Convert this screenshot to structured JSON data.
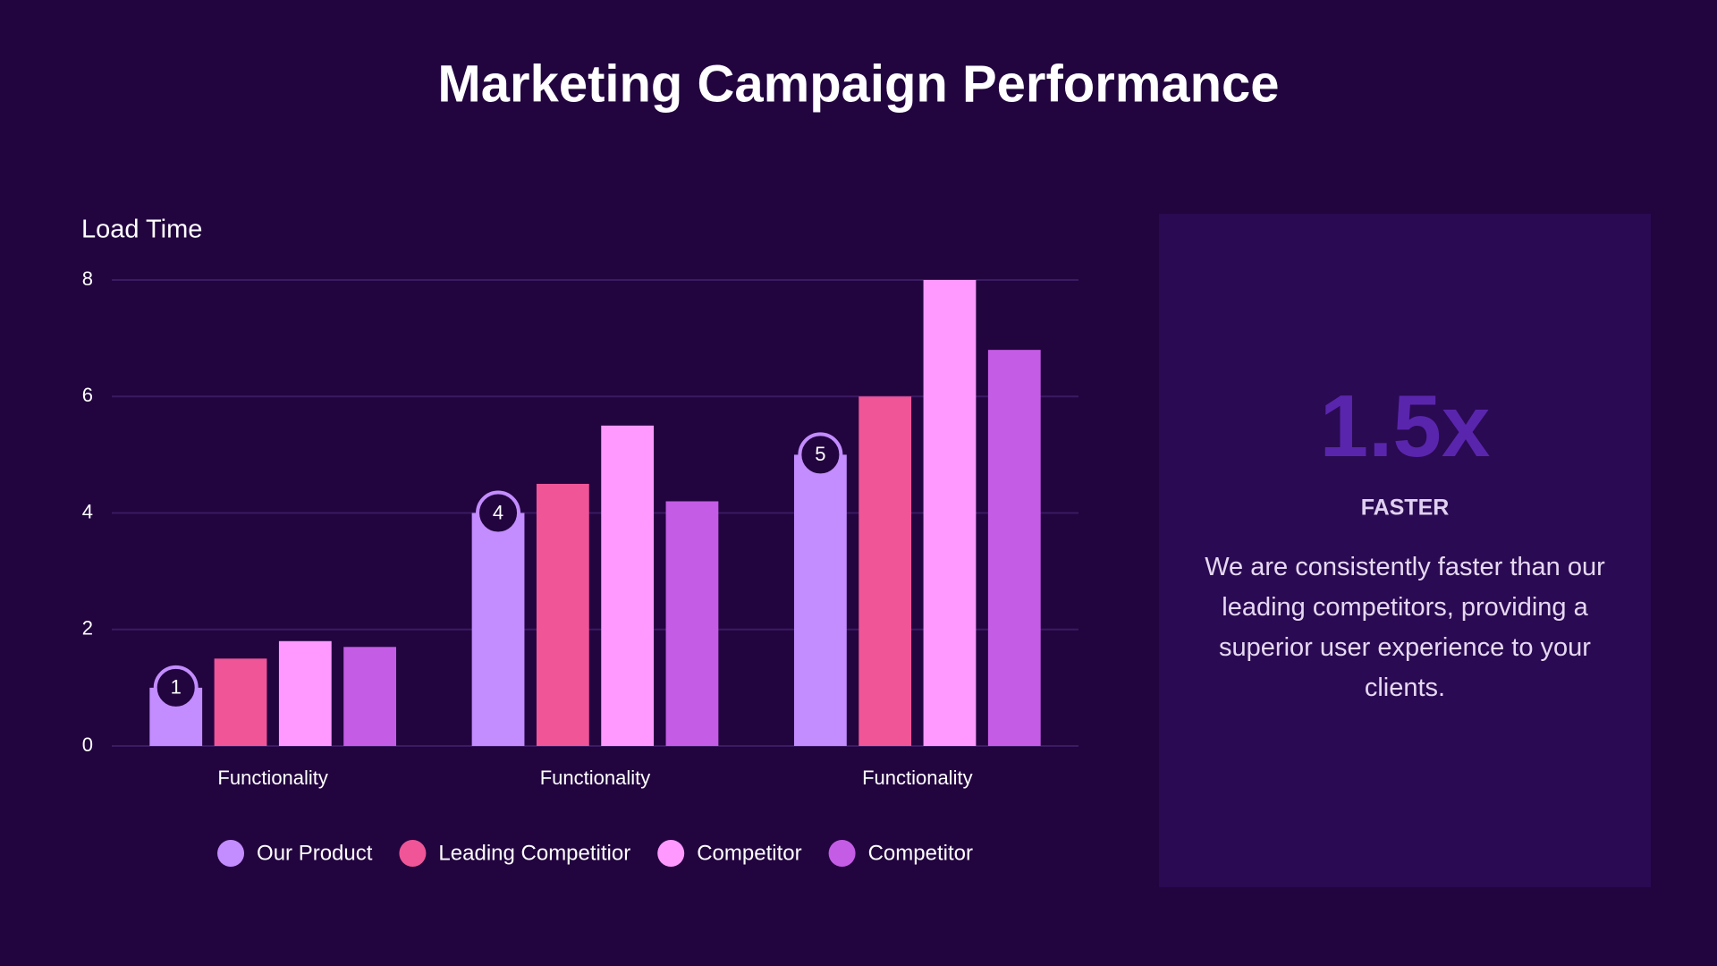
{
  "chart_data": {
    "type": "bar",
    "title": "Marketing Campaign Performance",
    "y_label": "Load Time",
    "categories": [
      "Functionality",
      "Functionality",
      "Functionality"
    ],
    "series": [
      {
        "name": "Our Product",
        "color": "#c38cff",
        "values": [
          1,
          4,
          5
        ]
      },
      {
        "name": "Leading Competitior",
        "color": "#ef5597",
        "values": [
          1.5,
          4.5,
          6
        ]
      },
      {
        "name": "Competitor",
        "color": "#ff99ff",
        "values": [
          1.8,
          5.5,
          8
        ]
      },
      {
        "name": "Competitor",
        "color": "#c45ce6",
        "values": [
          1.7,
          4.2,
          6.8
        ]
      }
    ],
    "annotated_series": 0,
    "ylim": [
      0,
      8
    ],
    "yticks": [
      0,
      2,
      4,
      6,
      8
    ],
    "grid": true
  },
  "callout": {
    "stat": "1.5x",
    "label": "FASTER",
    "text": "We are consistently faster than our leading competitors, providing a superior user experience to your clients."
  }
}
